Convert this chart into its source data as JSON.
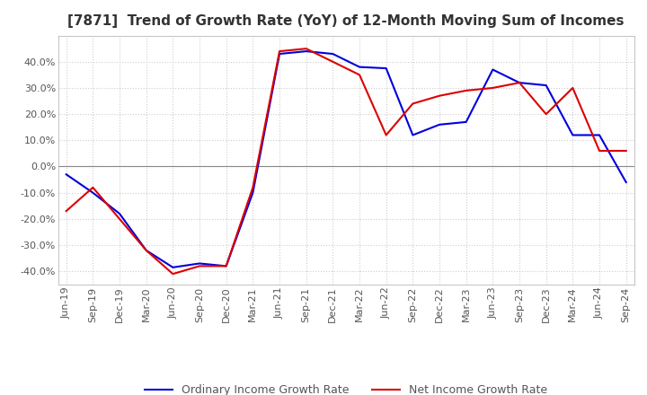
{
  "title": "[7871]  Trend of Growth Rate (YoY) of 12-Month Moving Sum of Incomes",
  "title_fontsize": 11,
  "background_color": "#ffffff",
  "grid_color": "#cccccc",
  "legend_labels": [
    "Ordinary Income Growth Rate",
    "Net Income Growth Rate"
  ],
  "line_colors": [
    "#0000dd",
    "#dd0000"
  ],
  "ylim": [
    -45,
    50
  ],
  "yticks": [
    -40,
    -30,
    -20,
    -10,
    0,
    10,
    20,
    30,
    40
  ],
  "dates": [
    "Jun-19",
    "Sep-19",
    "Dec-19",
    "Mar-20",
    "Jun-20",
    "Sep-20",
    "Dec-20",
    "Mar-21",
    "Jun-21",
    "Sep-21",
    "Dec-21",
    "Mar-22",
    "Jun-22",
    "Sep-22",
    "Dec-22",
    "Mar-23",
    "Jun-23",
    "Sep-23",
    "Dec-23",
    "Mar-24",
    "Jun-24",
    "Sep-24"
  ],
  "ordinary_income": [
    -3.0,
    -10.0,
    -18.0,
    -32.0,
    -38.5,
    -37.0,
    -38.0,
    -10.0,
    43.0,
    44.0,
    43.0,
    38.0,
    37.5,
    12.0,
    16.0,
    17.0,
    37.0,
    32.0,
    31.0,
    12.0,
    12.0,
    -6.0
  ],
  "net_income": [
    -17.0,
    -8.0,
    -20.0,
    -32.0,
    -41.0,
    -38.0,
    -38.0,
    -8.0,
    44.0,
    45.0,
    40.0,
    35.0,
    12.0,
    24.0,
    27.0,
    29.0,
    30.0,
    32.0,
    20.0,
    30.0,
    6.0,
    6.0
  ]
}
